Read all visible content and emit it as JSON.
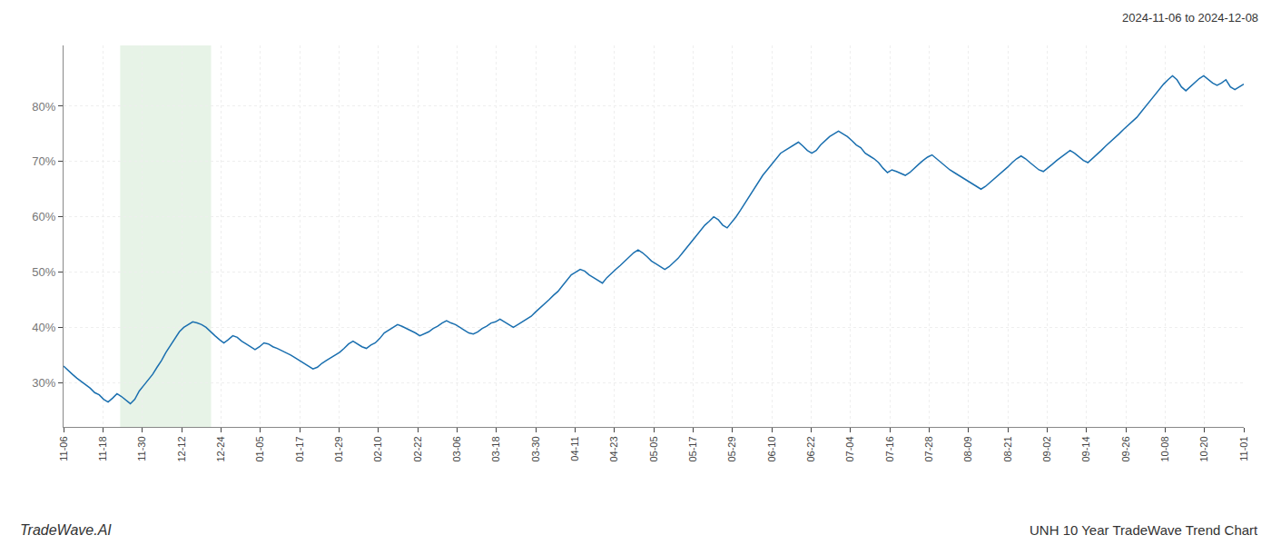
{
  "chart_data": {
    "type": "line",
    "title": "UNH 10 Year TradeWave Trend Chart",
    "subtitle": "2024-11-06 to 2024-12-08",
    "annotations": [
      "TradeWave.AI"
    ],
    "color": "#1a6faf",
    "grid": true,
    "highlight": {
      "x0": 12.72,
      "x1": 33.125,
      "color": "#d4ead4"
    },
    "xlim": [
      0,
      265
    ],
    "xticks": [
      {
        "value": 0,
        "label": "11-06"
      },
      {
        "value": 8.833333333333334,
        "label": "11-18"
      },
      {
        "value": 17.666666666666668,
        "label": "11-30"
      },
      {
        "value": 26.5,
        "label": "12-12"
      },
      {
        "value": 35.333333333333336,
        "label": "12-24"
      },
      {
        "value": 44.166666666666664,
        "label": "01-05"
      },
      {
        "value": 53,
        "label": "01-17"
      },
      {
        "value": 61.833333333333336,
        "label": "01-29"
      },
      {
        "value": 70.66666666666667,
        "label": "02-10"
      },
      {
        "value": 79.5,
        "label": "02-22"
      },
      {
        "value": 88.33333333333333,
        "label": "03-06"
      },
      {
        "value": 97.16666666666667,
        "label": "03-18"
      },
      {
        "value": 106,
        "label": "03-30"
      },
      {
        "value": 114.83333333333333,
        "label": "04-11"
      },
      {
        "value": 123.66666666666667,
        "label": "04-23"
      },
      {
        "value": 132.5,
        "label": "05-05"
      },
      {
        "value": 141.33333333333334,
        "label": "05-17"
      },
      {
        "value": 150.16666666666666,
        "label": "05-29"
      },
      {
        "value": 159,
        "label": "06-10"
      },
      {
        "value": 167.83333333333334,
        "label": "06-22"
      },
      {
        "value": 176.66666666666666,
        "label": "07-04"
      },
      {
        "value": 185.5,
        "label": "07-16"
      },
      {
        "value": 194.33333333333334,
        "label": "07-28"
      },
      {
        "value": 203.16666666666666,
        "label": "08-09"
      },
      {
        "value": 212,
        "label": "08-21"
      },
      {
        "value": 220.83333333333334,
        "label": "09-02"
      },
      {
        "value": 229.66666666666666,
        "label": "09-14"
      },
      {
        "value": 238.5,
        "label": "09-26"
      },
      {
        "value": 247.33333333333334,
        "label": "10-08"
      },
      {
        "value": 256.1666666666667,
        "label": "10-20"
      },
      {
        "value": 265,
        "label": "11-01"
      }
    ],
    "ylim": [
      22,
      91
    ],
    "yticks": [
      {
        "value": 30,
        "label": "30%"
      },
      {
        "value": 40,
        "label": "40%"
      },
      {
        "value": 50,
        "label": "50%"
      },
      {
        "value": 60,
        "label": "60%"
      },
      {
        "value": 70,
        "label": "70%"
      },
      {
        "value": 80,
        "label": "80%"
      }
    ],
    "values": [
      33.0,
      32.2,
      31.5,
      30.8,
      30.2,
      29.5,
      29.0,
      28.2,
      27.8,
      27.0,
      26.5,
      27.2,
      28.0,
      27.5,
      26.8,
      26.2,
      27.0,
      28.5,
      29.5,
      30.5,
      31.5,
      32.8,
      34.0,
      35.5,
      36.8,
      38.0,
      39.2,
      40.0,
      40.5,
      41.0,
      40.8,
      40.5,
      40.0,
      39.2,
      38.5,
      37.8,
      37.2,
      37.8,
      38.5,
      38.2,
      37.5,
      37.0,
      36.5,
      36.0,
      36.5,
      37.2,
      37.0,
      36.5,
      36.2,
      35.8,
      35.5,
      35.0,
      34.5,
      34.0,
      33.5,
      33.0,
      32.5,
      32.8,
      33.5,
      34.0,
      34.5,
      35.0,
      35.5,
      36.2,
      37.0,
      37.5,
      37.0,
      36.5,
      36.2,
      36.8,
      37.2,
      38.0,
      39.0,
      39.5,
      40.0,
      40.5,
      40.2,
      39.8,
      39.5,
      39.0,
      38.5,
      38.8,
      39.2,
      39.8,
      40.2,
      40.8,
      41.2,
      40.8,
      40.5,
      40.0,
      39.5,
      39.0,
      38.8,
      39.2,
      39.8,
      40.2,
      40.8,
      41.0,
      41.5,
      41.0,
      40.5,
      40.0,
      40.5,
      41.0,
      41.5,
      42.0,
      42.8,
      43.5,
      44.2,
      45.0,
      45.8,
      46.5,
      47.5,
      48.5,
      49.5,
      50.0,
      50.5,
      50.2,
      49.5,
      49.0,
      48.5,
      48.0,
      49.0,
      49.8,
      50.5,
      51.2,
      52.0,
      52.8,
      53.5,
      54.0,
      53.5,
      52.8,
      52.0,
      51.5,
      51.0,
      50.5,
      51.0,
      51.8,
      52.5,
      53.5,
      54.5,
      55.5,
      56.5,
      57.5,
      58.5,
      59.2,
      60.0,
      59.5,
      58.5,
      58.0,
      59.0,
      60.0,
      61.2,
      62.5,
      63.8,
      65.0,
      66.2,
      67.5,
      68.5,
      69.5,
      70.5,
      71.5,
      72.0,
      72.5,
      73.0,
      73.5,
      72.8,
      72.0,
      71.5,
      72.0,
      73.0,
      73.8,
      74.5,
      75.0,
      75.5,
      75.0,
      74.5,
      73.8,
      73.0,
      72.5,
      71.5,
      71.0,
      70.5,
      69.8,
      68.8,
      68.0,
      68.5,
      68.2,
      67.8,
      67.5,
      68.0,
      68.8,
      69.5,
      70.2,
      70.8,
      71.2,
      70.5,
      69.8,
      69.2,
      68.5,
      68.0,
      67.5,
      67.0,
      66.5,
      66.0,
      65.5,
      65.0,
      65.5,
      66.2,
      66.8,
      67.5,
      68.2,
      69.0,
      69.8,
      70.5,
      71.0,
      70.5,
      69.8,
      69.2,
      68.5,
      68.2,
      68.8,
      69.5,
      70.2,
      70.8,
      71.5,
      72.0,
      71.5,
      70.8,
      70.2,
      69.8,
      70.5,
      71.2,
      72.0,
      72.8,
      73.5,
      74.2,
      75.0,
      75.8,
      76.5,
      77.2,
      78.0,
      79.0,
      80.0,
      81.0,
      82.0,
      83.0,
      84.0,
      84.8,
      85.5,
      84.8,
      83.5,
      82.8,
      83.5,
      84.2,
      85.0,
      85.5,
      84.8,
      84.2,
      83.8,
      84.2,
      84.8,
      83.5,
      83.0,
      83.5,
      84.0
    ]
  }
}
